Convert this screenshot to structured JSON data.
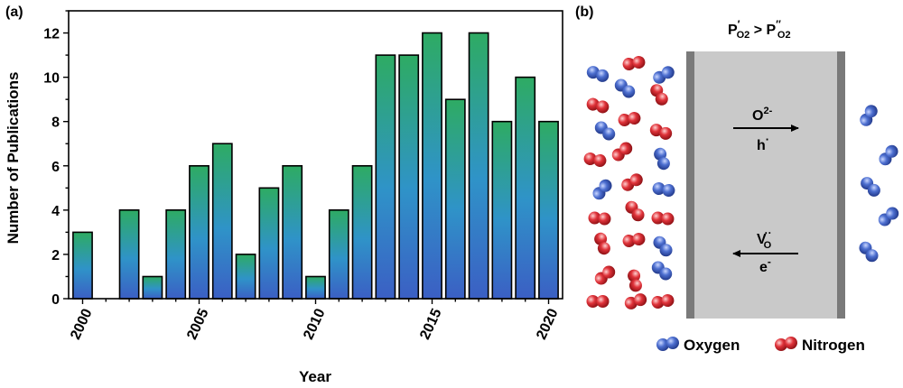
{
  "panel_a": {
    "label": "(a)",
    "chart_data": {
      "type": "bar",
      "xlabel": "Year",
      "ylabel": "Number of Publications",
      "x": [
        2000,
        2001,
        2002,
        2003,
        2004,
        2005,
        2006,
        2007,
        2008,
        2009,
        2010,
        2011,
        2012,
        2013,
        2014,
        2015,
        2016,
        2017,
        2018,
        2019,
        2020
      ],
      "values": [
        3,
        0,
        4,
        1,
        4,
        6,
        7,
        2,
        5,
        6,
        1,
        4,
        6,
        11,
        11,
        12,
        9,
        12,
        8,
        10,
        8
      ],
      "xlim": [
        1999.4,
        2020.6
      ],
      "ylim": [
        0,
        13
      ],
      "xticks": [
        "2000",
        "2005",
        "2010",
        "2015",
        "2020"
      ],
      "yticks": [
        "0",
        "2",
        "4",
        "6",
        "8",
        "10",
        "12"
      ],
      "bar_gradient": {
        "bottom": "#3b5fc4",
        "middle": "#2f93c8",
        "top": "#2eab63"
      },
      "grid": false
    }
  },
  "panel_b": {
    "label": "(b)",
    "pressure_condition": {
      "lhs_main": "P",
      "lhs_prime": "′",
      "lhs_sub": "O2",
      "op": " > ",
      "rhs_main": "P",
      "rhs_prime": "″",
      "rhs_sub": "O2"
    },
    "oxide_ion_label": {
      "main": "O",
      "sup": "2-"
    },
    "hole_label": {
      "main": "h",
      "sup": "·"
    },
    "vacancy_label": {
      "main": "V",
      "sup": "··",
      "sub": "O"
    },
    "electron_label": {
      "main": "e",
      "sup": "-"
    },
    "legend": {
      "oxygen": "Oxygen",
      "nitrogen": "Nitrogen"
    },
    "colors": {
      "oxygen": "#3f5fbf",
      "nitrogen": "#d8262e",
      "membrane_fill": "#c9c9c9",
      "membrane_edge": "#7a7a7a"
    }
  }
}
